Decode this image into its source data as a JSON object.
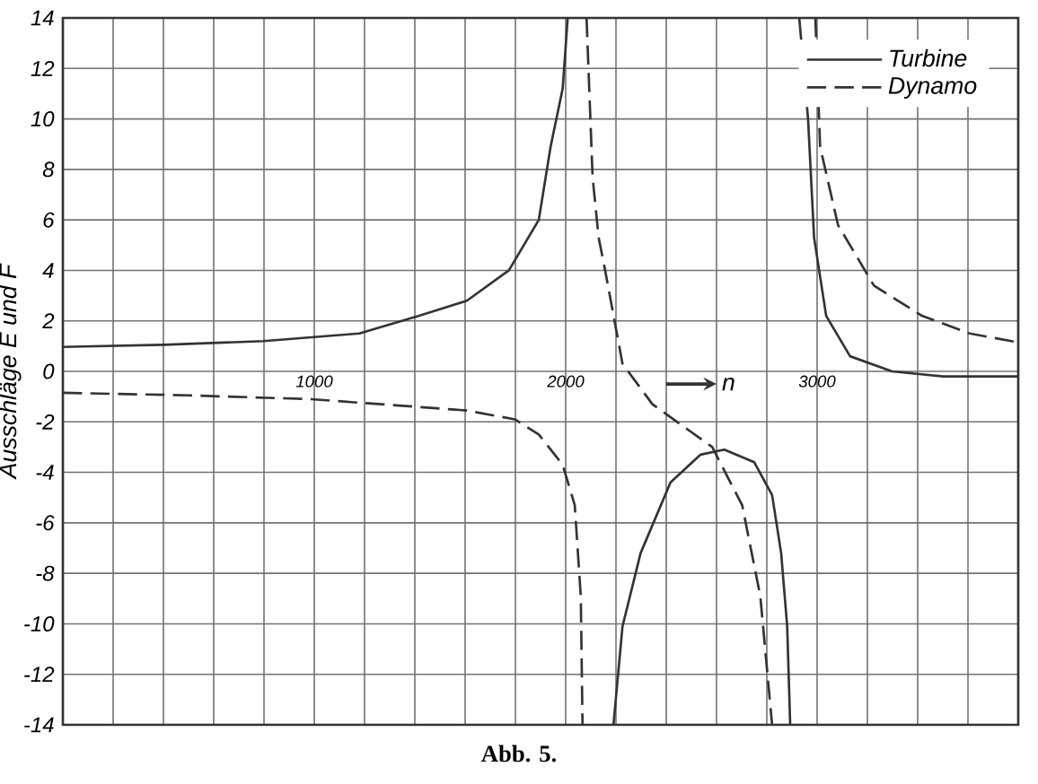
{
  "chart_data": {
    "type": "line",
    "xlabel": "n",
    "ylabel": "Ausschläge E und F",
    "annotations": [
      "Abb. 5."
    ],
    "xlim": [
      0,
      3800
    ],
    "ylim": [
      -14,
      14
    ],
    "xticks": [
      {
        "value": 200,
        "label": null
      },
      {
        "value": 400,
        "label": null
      },
      {
        "value": 600,
        "label": null
      },
      {
        "value": 800,
        "label": null
      },
      1000,
      {
        "value": 1200,
        "label": null
      },
      {
        "value": 1400,
        "label": null
      },
      {
        "value": 1600,
        "label": null
      },
      {
        "value": 1800,
        "label": null
      },
      2000,
      {
        "value": 2200,
        "label": null
      },
      {
        "value": 2400,
        "label": null
      },
      {
        "value": 2600,
        "label": null
      },
      {
        "value": 2800,
        "label": null
      },
      3000,
      {
        "value": 3200,
        "label": null
      },
      {
        "value": 3400,
        "label": null
      },
      {
        "value": 3600,
        "label": null
      }
    ],
    "yticks": [
      -14,
      -12,
      -10,
      -8,
      -6,
      -4,
      -2,
      0,
      2,
      4,
      6,
      8,
      10,
      12,
      14
    ],
    "grid": true,
    "legend": "top right",
    "marker": "none",
    "series": [
      {
        "name": "Turbine",
        "color": "#333333",
        "line_style": "solid",
        "x": [
          0,
          400,
          798,
          1179,
          1417,
          1607,
          1774,
          1893,
          1940,
          1988,
          2008,
          2100,
          2190,
          2226,
          2298,
          2417,
          2536,
          2631,
          2750,
          2821,
          2857,
          2881,
          2893,
          2910,
          2929,
          2964,
          2988,
          3036,
          3131,
          3298,
          3500,
          3800
        ],
        "values": [
          0.97,
          1.05,
          1.2,
          1.5,
          2.2,
          2.8,
          4.0,
          6.0,
          8.9,
          11.2,
          14,
          null,
          -14,
          -10.1,
          -7.2,
          -4.4,
          -3.3,
          -3.1,
          -3.6,
          -4.9,
          -7.2,
          -10.1,
          -14,
          null,
          14,
          10,
          5.3,
          2.2,
          0.6,
          0,
          -0.2,
          -0.2
        ]
      },
      {
        "name": "Dynamo",
        "color": "#333333",
        "line_style": "dashed",
        "x": [
          0,
          500,
          986,
          1607,
          1798,
          1893,
          1988,
          2036,
          2060,
          2067,
          2075,
          2083,
          2107,
          2131,
          2155,
          2226,
          2345,
          2583,
          2702,
          2774,
          2821,
          2900,
          2993,
          3012,
          3083,
          3226,
          3417,
          3607,
          3800
        ],
        "values": [
          -0.85,
          -0.95,
          -1.1,
          -1.55,
          -1.9,
          -2.5,
          -3.7,
          -5.3,
          -8.9,
          -14,
          null,
          14,
          7.7,
          5.3,
          4.1,
          0.3,
          -1.3,
          -3.0,
          -5.3,
          -8.9,
          -14,
          null,
          14,
          8.9,
          5.8,
          3.4,
          2.2,
          1.5,
          1.15
        ]
      }
    ]
  }
}
